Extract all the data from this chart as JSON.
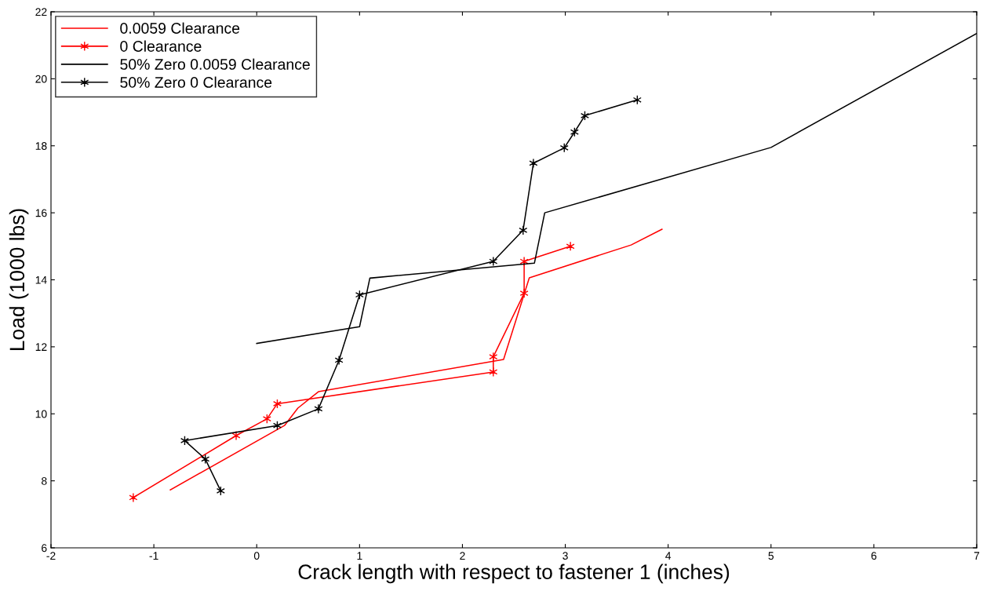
{
  "chart_data": {
    "type": "line",
    "xlabel": "Crack length with respect to fastener 1 (inches)",
    "ylabel": "Load (1000 lbs)",
    "xlim": [
      -2,
      7
    ],
    "xticks": [
      -2,
      -1,
      0,
      1,
      2,
      3,
      4,
      5,
      6,
      7
    ],
    "ylim": [
      6,
      22
    ],
    "yticks": [
      6,
      8,
      10,
      12,
      14,
      16,
      18,
      20,
      22
    ],
    "grid": false,
    "legend": "top left",
    "line_style": "solid",
    "series": [
      {
        "name": "0.0059 Clearance",
        "color": "#ff0000",
        "marker": "none",
        "x": [
          -0.84,
          0.27,
          0.4,
          0.6,
          2.4,
          2.65,
          3.64,
          3.94
        ],
        "values": [
          7.73,
          9.65,
          10.17,
          10.66,
          11.62,
          14.06,
          15.04,
          15.51
        ]
      },
      {
        "name": "0 Clearance",
        "color": "#ff0000",
        "marker": "cross",
        "x": [
          -1.2,
          -0.2,
          0.1,
          0.2,
          2.3,
          2.3,
          2.6,
          2.6,
          3.05
        ],
        "values": [
          7.5,
          9.35,
          9.85,
          10.3,
          11.25,
          11.7,
          13.6,
          14.55,
          15.0
        ]
      },
      {
        "name": "50% Zero 0.0059 Clearance",
        "color": "#000000",
        "marker": "none",
        "x": [
          0,
          1.0,
          1.1,
          2.7,
          2.8,
          5.0,
          7.0
        ],
        "values": [
          12.1,
          12.6,
          14.05,
          14.5,
          16.0,
          17.95,
          21.35
        ]
      },
      {
        "name": "50% Zero 0 Clearance",
        "color": "#000000",
        "marker": "cross",
        "x": [
          -0.35,
          -0.5,
          -0.7,
          0.2,
          0.6,
          0.8,
          1.0,
          2.3,
          2.59,
          2.69,
          2.99,
          3.09,
          3.19,
          3.7
        ],
        "values": [
          7.7,
          8.65,
          9.2,
          9.65,
          10.15,
          11.6,
          13.55,
          14.55,
          15.48,
          17.48,
          17.94,
          18.41,
          18.9,
          19.37
        ]
      }
    ]
  }
}
